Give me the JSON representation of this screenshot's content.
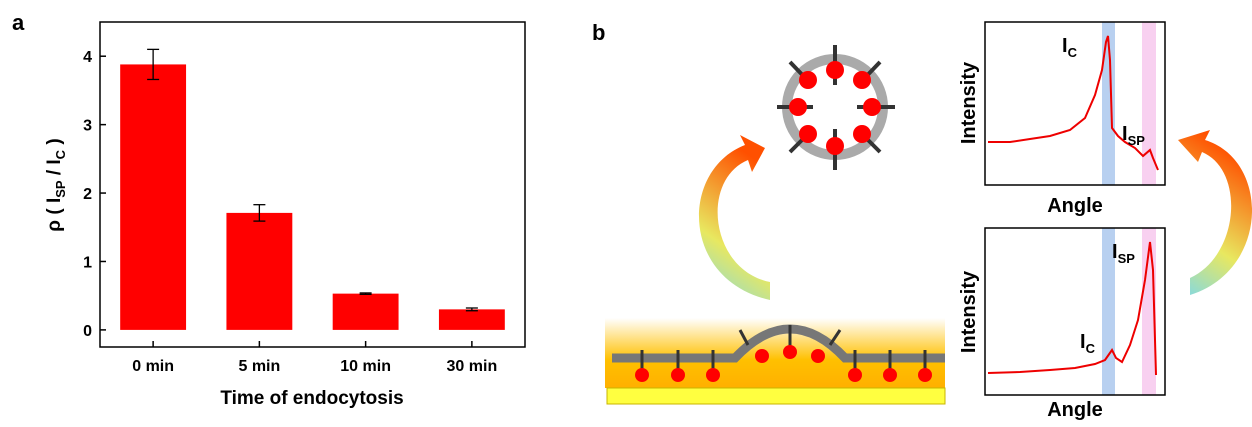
{
  "chart_data": {
    "type": "bar",
    "xlabel": "Time of endocytosis",
    "ylabel": {
      "pre": "ρ ( I",
      "sub1": "SP",
      "mid": " / I",
      "sub2": "C",
      "post": " )"
    },
    "categories": [
      "0 min",
      "5 min",
      "10 min",
      "30 min"
    ],
    "values": [
      3.88,
      1.71,
      0.53,
      0.3
    ],
    "errors": [
      0.22,
      0.12,
      0.01,
      0.02
    ],
    "color": "#ff0000",
    "ylim": [
      -0.25,
      4.5
    ],
    "yticks": [
      0,
      1,
      2,
      3,
      4
    ]
  },
  "panel_labels": [
    "a",
    "b"
  ],
  "panel_b": {
    "plots": [
      {
        "ylabel": "Intensity",
        "xlabel": "Angle",
        "peaks": [
          {
            "main": "I",
            "sub": "C"
          },
          {
            "main": "I",
            "sub": "SP"
          }
        ]
      },
      {
        "ylabel": "Intensity",
        "xlabel": "Angle",
        "peaks": [
          {
            "main": "I",
            "sub": "SP"
          },
          {
            "main": "I",
            "sub": "C"
          }
        ]
      }
    ]
  }
}
